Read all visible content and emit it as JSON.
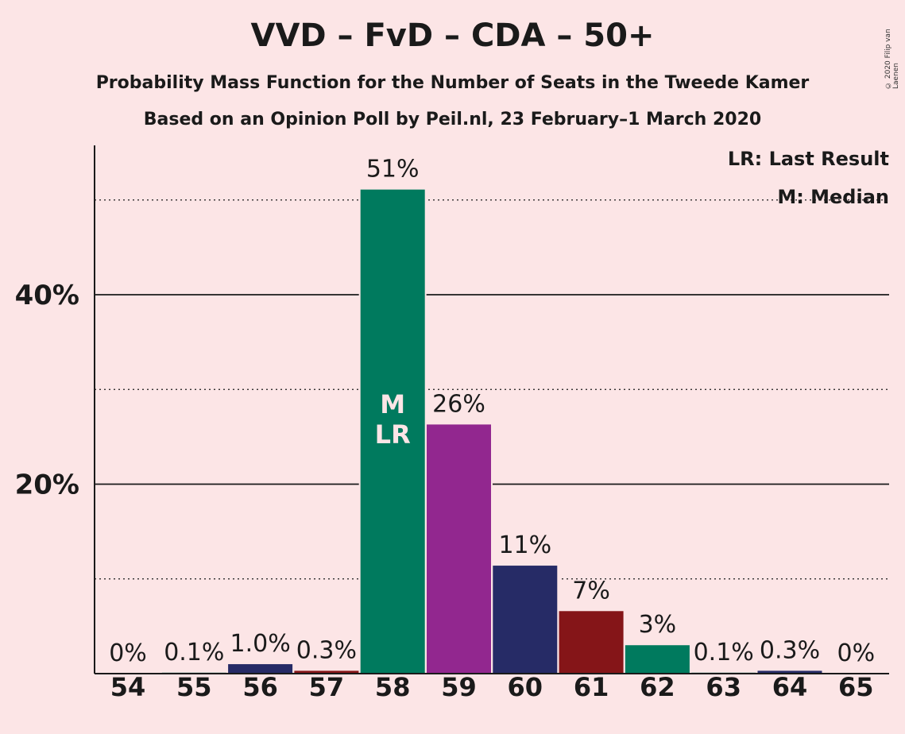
{
  "title": "VVD – FvD – CDA – 50+",
  "subtitle1": "Probability Mass Function for the Number of Seats in the Tweede Kamer",
  "subtitle2": "Based on an Opinion Poll by Peil.nl, 23 February–1 March 2020",
  "copyright": "© 2020 Filip van Laenen",
  "legend": {
    "last_result": "LR: Last Result",
    "median": "M: Median"
  },
  "chart_data": {
    "type": "bar",
    "categories": [
      "54",
      "55",
      "56",
      "57",
      "58",
      "59",
      "60",
      "61",
      "62",
      "63",
      "64",
      "65"
    ],
    "values": [
      0,
      0.1,
      1.0,
      0.3,
      51,
      26,
      11,
      7,
      3,
      0.1,
      0.3,
      0
    ],
    "heights": [
      0,
      0.1,
      1.0,
      0.3,
      51.1,
      26.3,
      11.4,
      6.6,
      3.0,
      0.1,
      0.3,
      0
    ],
    "labels": [
      "0%",
      "0.1%",
      "1.0%",
      "0.3%",
      "51%",
      "26%",
      "11%",
      "7%",
      "3%",
      "0.1%",
      "0.3%",
      "0%"
    ],
    "colors": [
      "#0E7B5E",
      "#0E7B5E",
      "#262B66",
      "#851518",
      "#007A5E",
      "#92278F",
      "#262B66",
      "#851518",
      "#007A5E",
      "#0E7B5E",
      "#262B66",
      "#851518"
    ],
    "ylim": [
      0,
      55
    ],
    "yticks": [
      {
        "value": 20,
        "label": "20%"
      },
      {
        "value": 40,
        "label": "40%"
      }
    ],
    "minor_gridlines": [
      10,
      30,
      50
    ],
    "markers": {
      "category": "58",
      "text": [
        "M",
        "LR"
      ]
    }
  }
}
